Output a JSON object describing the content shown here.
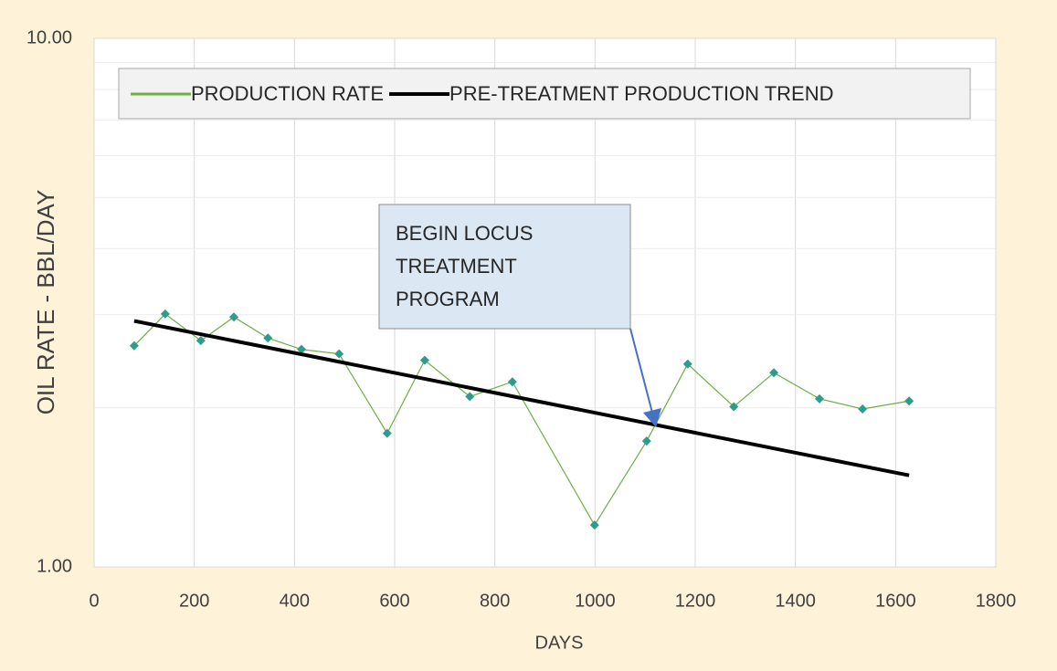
{
  "chart_data": {
    "type": "line",
    "x_label": "DAYS",
    "y_label": "OIL RATE - BBL/DAY",
    "y_log": true,
    "grid": true,
    "xlim": [
      0,
      1800
    ],
    "xticks": [
      0,
      200,
      400,
      600,
      800,
      1000,
      1200,
      1400,
      1600,
      1800
    ],
    "ylim": [
      1,
      10
    ],
    "yticks": [
      {
        "value": 1,
        "label": "1.00"
      },
      {
        "value": 10,
        "label": "10.00"
      }
    ],
    "minor_grid": [
      2,
      3,
      4,
      5,
      6,
      7,
      8,
      9
    ],
    "series": [
      {
        "name": "PRODUCTION RATE",
        "color": "#70ad47",
        "marker_color": "#2e9c8a",
        "x": [
          80,
          142,
          213,
          279,
          347,
          414,
          489,
          585,
          660,
          750,
          835,
          999,
          1103,
          1185,
          1277,
          1357,
          1448,
          1534,
          1627
        ],
        "values": [
          2.62,
          3.01,
          2.68,
          2.97,
          2.71,
          2.58,
          2.53,
          1.79,
          2.46,
          2.1,
          2.24,
          1.2,
          1.73,
          2.42,
          2.01,
          2.33,
          2.08,
          1.99,
          2.06
        ]
      },
      {
        "name": "PRE-TREATMENT PRODUCTION TREND",
        "color": "#000000",
        "x": [
          80,
          1627
        ],
        "values": [
          2.92,
          1.49
        ]
      }
    ],
    "annotation": {
      "lines": [
        "BEGIN LOCUS",
        "TREATMENT",
        "PROGRAM"
      ]
    }
  }
}
